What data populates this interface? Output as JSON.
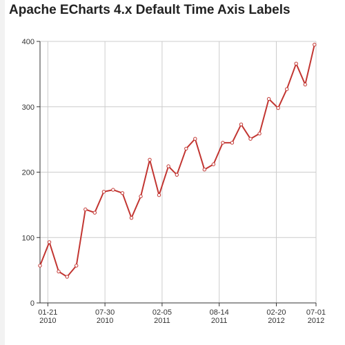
{
  "page": {
    "title": "Apache ECharts 4.x Default Time Axis Labels"
  },
  "chart_data": {
    "type": "line",
    "title": "",
    "xlabel": "",
    "ylabel": "",
    "ylim": [
      0,
      400
    ],
    "xlim": [
      "2009-12-26",
      "2012-07-01"
    ],
    "grid": true,
    "y_ticks": [
      0,
      100,
      200,
      300,
      400
    ],
    "x_ticks": [
      {
        "date": "2010-01-21",
        "label_top": "01-21",
        "label_bottom": "2010"
      },
      {
        "date": "2010-07-30",
        "label_top": "07-30",
        "label_bottom": "2010"
      },
      {
        "date": "2011-02-05",
        "label_top": "02-05",
        "label_bottom": "2011"
      },
      {
        "date": "2011-08-14",
        "label_top": "08-14",
        "label_bottom": "2011"
      },
      {
        "date": "2012-02-20",
        "label_top": "02-20",
        "label_bottom": "2012"
      },
      {
        "date": "2012-07-01",
        "label_top": "07-01",
        "label_bottom": "2012"
      }
    ],
    "colors": {
      "series": "#c23531",
      "grid": "#cccccc",
      "axis": "#333333"
    },
    "series": [
      {
        "points": [
          {
            "x": "2009-12-26",
            "y": 57
          },
          {
            "x": "2010-01-26",
            "y": 93
          },
          {
            "x": "2010-02-26",
            "y": 48
          },
          {
            "x": "2010-03-26",
            "y": 40
          },
          {
            "x": "2010-04-26",
            "y": 57
          },
          {
            "x": "2010-05-26",
            "y": 143
          },
          {
            "x": "2010-06-26",
            "y": 138
          },
          {
            "x": "2010-07-26",
            "y": 170
          },
          {
            "x": "2010-08-26",
            "y": 173
          },
          {
            "x": "2010-09-26",
            "y": 168
          },
          {
            "x": "2010-10-26",
            "y": 130
          },
          {
            "x": "2010-11-26",
            "y": 163
          },
          {
            "x": "2010-12-26",
            "y": 219
          },
          {
            "x": "2011-01-26",
            "y": 165
          },
          {
            "x": "2011-02-26",
            "y": 209
          },
          {
            "x": "2011-03-26",
            "y": 196
          },
          {
            "x": "2011-04-26",
            "y": 236
          },
          {
            "x": "2011-05-26",
            "y": 251
          },
          {
            "x": "2011-06-26",
            "y": 204
          },
          {
            "x": "2011-07-26",
            "y": 212
          },
          {
            "x": "2011-08-26",
            "y": 245
          },
          {
            "x": "2011-09-26",
            "y": 245
          },
          {
            "x": "2011-10-26",
            "y": 273
          },
          {
            "x": "2011-11-26",
            "y": 251
          },
          {
            "x": "2011-12-26",
            "y": 259
          },
          {
            "x": "2012-01-26",
            "y": 312
          },
          {
            "x": "2012-02-26",
            "y": 298
          },
          {
            "x": "2012-03-26",
            "y": 327
          },
          {
            "x": "2012-04-26",
            "y": 366
          },
          {
            "x": "2012-05-26",
            "y": 334
          },
          {
            "x": "2012-06-26",
            "y": 395
          }
        ]
      }
    ]
  }
}
